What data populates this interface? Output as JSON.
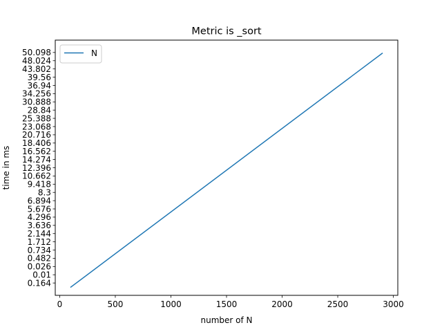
{
  "chart_data": {
    "type": "line",
    "title": "Metric is _sort",
    "xlabel": "number of N",
    "ylabel": "time in ms",
    "xlim": [
      -40,
      3040
    ],
    "x_ticks": [
      0,
      500,
      1000,
      1500,
      2000,
      2500,
      3000
    ],
    "y_tick_labels": [
      "0.164",
      "0.01",
      "0.026",
      "0.482",
      "0.734",
      "1.712",
      "2.144",
      "3.636",
      "4.296",
      "5.676",
      "6.894",
      "8.3",
      "9.418",
      "10.662",
      "12.396",
      "14.274",
      "16.562",
      "18.406",
      "20.716",
      "23.068",
      "25.388",
      "28.84",
      "30.888",
      "34.256",
      "36.94",
      "39.56",
      "43.802",
      "48.024",
      "50.098"
    ],
    "y_tick_positions": [
      0,
      1,
      2,
      3,
      4,
      5,
      6,
      7,
      8,
      9,
      10,
      11,
      12,
      13,
      14,
      15,
      16,
      17,
      18,
      19,
      20,
      21,
      22,
      23,
      24,
      25,
      26,
      27,
      28
    ],
    "ylim": [
      -1.5,
      29.5
    ],
    "legend": {
      "position": "top-left",
      "entries": [
        "N"
      ]
    },
    "grid": false,
    "color": "#1f77b4",
    "series": [
      {
        "name": "N",
        "x": [
          100,
          2900
        ],
        "y": [
          -0.5,
          27.9
        ]
      }
    ]
  }
}
